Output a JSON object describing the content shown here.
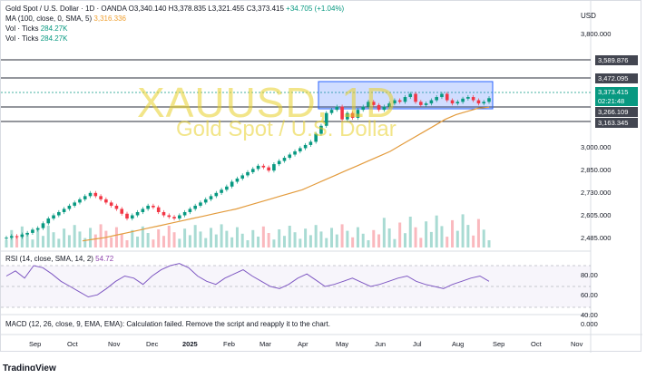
{
  "header": {
    "symbol": "Gold Spot / U.S. Dollar · 1D · OANDA",
    "o_label": "O",
    "o": "3,340.140",
    "h_label": "H",
    "h": "3,378.835",
    "l_label": "L",
    "l": "3,321.455",
    "c_label": "C",
    "c": "3,373.415",
    "change": "+34.705 (+1.04%)",
    "ma_label": "MA (100, close, 0, SMA, 5)",
    "ma_value": "3,316.336",
    "vol1_label": "Vol · Ticks",
    "vol1_value": "284.27K",
    "vol2_label": "Vol · Ticks",
    "vol2_value": "284.27K"
  },
  "currency": "USD",
  "price_axis": [
    "3,800.000",
    "3,000.000",
    "2,850.000",
    "2,730.000",
    "2,605.000",
    "2,485.000"
  ],
  "price_tags": [
    {
      "label": "3,589.876",
      "color": "#434651"
    },
    {
      "label": "3,472.095",
      "color": "#434651"
    },
    {
      "label": "3,373.415",
      "color": "#089981"
    },
    {
      "label": "02:21:48",
      "color": "#089981"
    },
    {
      "label": "3,266.109",
      "color": "#434651"
    },
    {
      "label": "3,163.345",
      "color": "#434651"
    }
  ],
  "watermark": {
    "ticker": "XAUUSD, 1D",
    "name": "Gold Spot / U.S. Dollar"
  },
  "rsi": {
    "label": "RSI (14, close, SMA, 14, 2)",
    "value": "54.72",
    "axis": [
      "80.00",
      "60.00",
      "40.00"
    ]
  },
  "macd": {
    "label": "MACD (12, 26, close, 9, EMA, EMA): Calculation failed. Remove the script and reapply it to the chart.",
    "axis": "0.000"
  },
  "time_axis": [
    "Sep",
    "Oct",
    "Nov",
    "Dec",
    "2025",
    "Feb",
    "Mar",
    "Apr",
    "May",
    "Jun",
    "Jul",
    "Aug",
    "Sep",
    "Oct",
    "Nov"
  ],
  "footer": "TradingView",
  "colors": {
    "up": "#089981",
    "down": "#f23645",
    "ma": "#e39b3c",
    "rsi": "#7e57c2",
    "range_box": "#2962ff"
  },
  "chart_data": {
    "type": "candlestick",
    "symbol": "XAUUSD",
    "timeframe": "1D",
    "close_series_approx": [
      2500,
      2510,
      2505,
      2520,
      2530,
      2550,
      2560,
      2590,
      2620,
      2640,
      2660,
      2680,
      2700,
      2720,
      2740,
      2760,
      2780,
      2760,
      2740,
      2720,
      2700,
      2680,
      2650,
      2620,
      2640,
      2660,
      2680,
      2700,
      2690,
      2660,
      2640,
      2630,
      2620,
      2640,
      2660,
      2680,
      2700,
      2720,
      2740,
      2760,
      2780,
      2800,
      2820,
      2850,
      2870,
      2890,
      2910,
      2930,
      2950,
      2940,
      2920,
      2960,
      2980,
      3000,
      3020,
      3040,
      3060,
      3080,
      3100,
      3150,
      3200,
      3280,
      3300,
      3320,
      3240,
      3280,
      3250,
      3300,
      3320,
      3350,
      3330,
      3300,
      3320,
      3340,
      3360,
      3350,
      3380,
      3400,
      3350,
      3330,
      3340,
      3360,
      3380,
      3400,
      3360,
      3340,
      3350,
      3370,
      3380,
      3360,
      3340,
      3350,
      3373
    ],
    "ma100_approx": [
      2480,
      2490,
      2500,
      2515,
      2530,
      2545,
      2560,
      2575,
      2590,
      2605,
      2620,
      2635,
      2650,
      2665,
      2680,
      2700,
      2720,
      2740,
      2760,
      2780,
      2800,
      2830,
      2860,
      2890,
      2920,
      2950,
      2980,
      3010,
      3040,
      3080,
      3120,
      3160,
      3200,
      3240,
      3270,
      3290,
      3310,
      3316
    ],
    "horizontal_levels": [
      3589.876,
      3472.095,
      3266.109,
      3163.345
    ],
    "last_close": 3373.415,
    "rsi_approx": [
      60,
      65,
      58,
      70,
      68,
      62,
      55,
      50,
      45,
      40,
      42,
      48,
      55,
      60,
      58,
      52,
      60,
      66,
      70,
      72,
      68,
      60,
      55,
      52,
      58,
      62,
      66,
      60,
      55,
      50,
      48,
      52,
      58,
      62,
      56,
      50,
      52,
      55,
      58,
      54,
      50,
      52,
      55,
      58,
      60,
      55,
      52,
      50,
      48,
      52,
      55,
      58,
      60,
      55
    ],
    "rsi_last": 54.72,
    "rsi_levels": [
      70,
      30
    ]
  }
}
